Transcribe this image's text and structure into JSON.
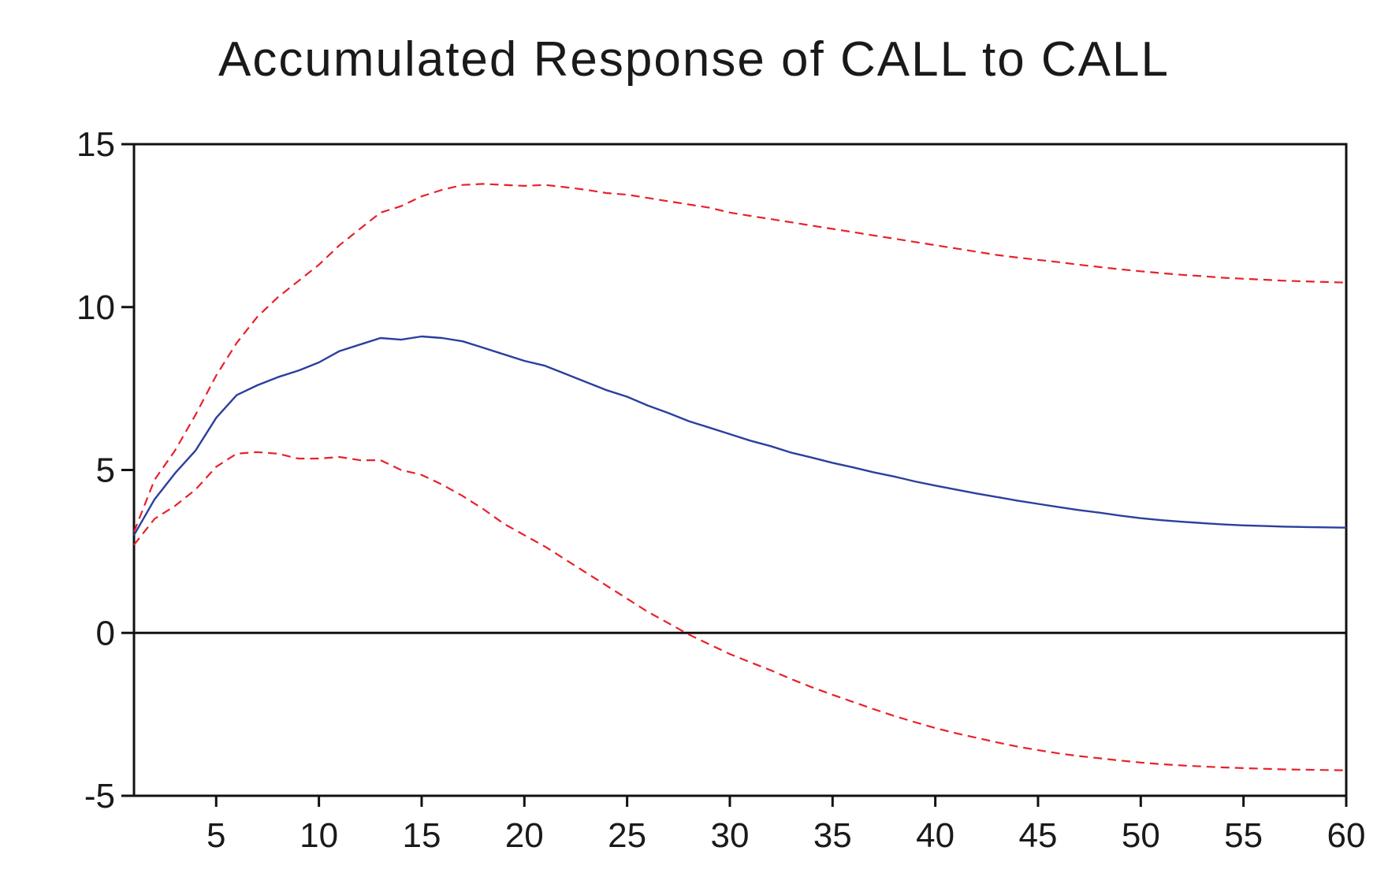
{
  "chart_data": {
    "type": "line",
    "title": "Accumulated Response of CALL to CALL",
    "xlabel": "",
    "ylabel": "",
    "xlim": [
      1,
      60
    ],
    "ylim": [
      -5,
      15
    ],
    "x_ticks": [
      5,
      10,
      15,
      20,
      25,
      30,
      35,
      40,
      45,
      50,
      55,
      60
    ],
    "y_ticks": [
      -5,
      0,
      5,
      10,
      15
    ],
    "zero_line": true,
    "grid": false,
    "legend": "none",
    "x": [
      1,
      2,
      3,
      4,
      5,
      6,
      7,
      8,
      9,
      10,
      11,
      12,
      13,
      14,
      15,
      16,
      17,
      18,
      19,
      20,
      21,
      22,
      23,
      24,
      25,
      26,
      27,
      28,
      29,
      30,
      31,
      32,
      33,
      34,
      35,
      36,
      37,
      38,
      39,
      40,
      41,
      42,
      43,
      44,
      45,
      46,
      47,
      48,
      49,
      50,
      51,
      52,
      53,
      54,
      55,
      56,
      57,
      58,
      59,
      60
    ],
    "series": [
      {
        "role": "response",
        "color": "#2b3f9e",
        "style": "solid",
        "values": [
          3.0,
          4.1,
          4.9,
          5.6,
          6.6,
          7.3,
          7.6,
          7.85,
          8.05,
          8.3,
          8.65,
          8.85,
          9.05,
          9.0,
          9.1,
          9.05,
          8.95,
          8.75,
          8.55,
          8.35,
          8.2,
          7.95,
          7.7,
          7.45,
          7.25,
          6.98,
          6.75,
          6.5,
          6.3,
          6.1,
          5.9,
          5.73,
          5.53,
          5.38,
          5.22,
          5.08,
          4.93,
          4.8,
          4.65,
          4.52,
          4.4,
          4.28,
          4.17,
          4.06,
          3.96,
          3.86,
          3.77,
          3.69,
          3.6,
          3.52,
          3.46,
          3.41,
          3.37,
          3.33,
          3.3,
          3.28,
          3.26,
          3.25,
          3.24,
          3.23
        ]
      },
      {
        "role": "upper-band",
        "color": "#e8202a",
        "style": "dashed",
        "values": [
          3.1,
          4.7,
          5.6,
          6.7,
          7.9,
          8.9,
          9.7,
          10.3,
          10.8,
          11.3,
          11.9,
          12.4,
          12.9,
          13.1,
          13.4,
          13.6,
          13.75,
          13.78,
          13.75,
          13.72,
          13.75,
          13.68,
          13.6,
          13.5,
          13.45,
          13.35,
          13.25,
          13.15,
          13.05,
          12.9,
          12.8,
          12.7,
          12.6,
          12.5,
          12.4,
          12.3,
          12.2,
          12.1,
          12.0,
          11.9,
          11.8,
          11.7,
          11.6,
          11.52,
          11.45,
          11.38,
          11.3,
          11.23,
          11.16,
          11.1,
          11.04,
          10.99,
          10.95,
          10.9,
          10.87,
          10.84,
          10.81,
          10.79,
          10.77,
          10.75
        ]
      },
      {
        "role": "lower-band",
        "color": "#e8202a",
        "style": "dashed",
        "values": [
          2.7,
          3.5,
          3.9,
          4.4,
          5.1,
          5.5,
          5.55,
          5.5,
          5.35,
          5.35,
          5.4,
          5.3,
          5.3,
          5.0,
          4.85,
          4.55,
          4.2,
          3.8,
          3.35,
          3.0,
          2.65,
          2.25,
          1.85,
          1.45,
          1.05,
          0.65,
          0.3,
          -0.05,
          -0.35,
          -0.65,
          -0.9,
          -1.15,
          -1.42,
          -1.67,
          -1.9,
          -2.12,
          -2.34,
          -2.55,
          -2.74,
          -2.92,
          -3.08,
          -3.22,
          -3.36,
          -3.49,
          -3.6,
          -3.7,
          -3.78,
          -3.85,
          -3.92,
          -3.98,
          -4.03,
          -4.07,
          -4.1,
          -4.13,
          -4.15,
          -4.17,
          -4.19,
          -4.2,
          -4.21,
          -4.22
        ]
      }
    ]
  }
}
